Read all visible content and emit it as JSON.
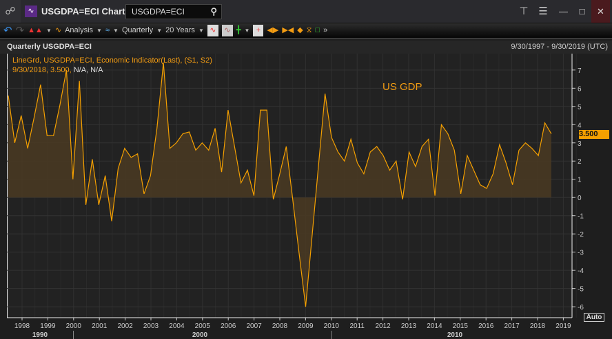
{
  "window": {
    "title": "USGDPA=ECI Chart",
    "search_value": "USGDPA=ECI"
  },
  "toolbar": {
    "analysis_label": "Analysis",
    "interval_label": "Quarterly",
    "range_label": "20 Years"
  },
  "chart_header": {
    "title": "Quarterly USGDPA=ECI",
    "date_range": "9/30/1997 - 9/30/2019 (UTC)"
  },
  "legend": {
    "line1": "LineGrd, USGDPA=ECI, Economic Indicator(Last), (S1, S2)",
    "line2_date": "9/30/2018, 3.500,",
    "line2_rest": " N/A, N/A"
  },
  "annotation": "US GDP",
  "last_value_label": "3.500",
  "auto_label": "Auto",
  "colors": {
    "line": "#f5a000",
    "fill": "#4a3a22",
    "background": "#222222"
  },
  "chart_data": {
    "type": "area",
    "title": "Quarterly USGDPA=ECI",
    "series_name": "USGDPA=ECI",
    "x_start": "1997Q3",
    "x_end": "2018Q3",
    "frequency": "quarterly",
    "values": [
      5.6,
      3.0,
      4.5,
      2.7,
      4.4,
      6.2,
      3.4,
      3.4,
      5.1,
      7.0,
      1.0,
      6.4,
      -0.4,
      2.1,
      -0.4,
      1.2,
      -1.3,
      1.6,
      2.7,
      2.2,
      2.4,
      0.2,
      1.2,
      3.8,
      7.4,
      2.7,
      3.0,
      3.5,
      3.6,
      2.6,
      3.0,
      2.6,
      3.8,
      1.4,
      4.8,
      2.8,
      0.8,
      1.5,
      0.1,
      4.8,
      4.8,
      -0.1,
      1.3,
      2.8,
      -0.1,
      -3.1,
      -6.0,
      -2.1,
      1.8,
      5.7,
      3.3,
      2.5,
      2.0,
      3.2,
      1.9,
      1.3,
      2.5,
      2.8,
      2.3,
      1.5,
      2.0,
      -0.1,
      2.5,
      1.7,
      2.8,
      3.2,
      0.1,
      4.0,
      3.5,
      2.6,
      0.2,
      2.3,
      1.5,
      0.7,
      0.5,
      1.3,
      2.9,
      1.9,
      0.7,
      2.6,
      3.0,
      2.7,
      2.3,
      4.1,
      3.5
    ],
    "ylim": [
      -6.6,
      7.9
    ],
    "y_ticks": [
      7,
      6,
      5,
      4,
      3,
      2,
      1,
      0,
      -1,
      -2,
      -3,
      -4,
      -5,
      -6
    ],
    "x_ticks": [
      "1998",
      "1999",
      "2000",
      "2001",
      "2002",
      "2003",
      "2004",
      "2005",
      "2006",
      "2007",
      "2008",
      "2009",
      "2010",
      "2011",
      "2012",
      "2013",
      "2014",
      "2015",
      "2016",
      "2017",
      "2018",
      "2019"
    ],
    "decade_labels": [
      "1990",
      "2000",
      "2010"
    ],
    "axis_side": "right",
    "grid": true
  }
}
